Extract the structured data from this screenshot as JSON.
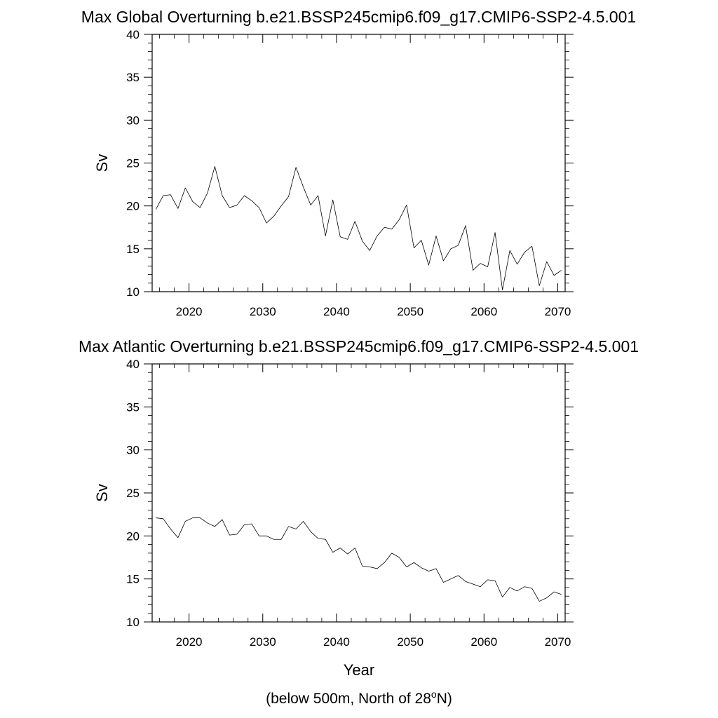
{
  "colors": {
    "background": "#ffffff",
    "line": "#000000",
    "axes": "#000000"
  },
  "figure": {
    "xlabel": "Year",
    "caption": {
      "prefix": "(below 500m, North of 28",
      "superscript": "o",
      "suffix": "N)"
    }
  },
  "chart_data": [
    {
      "type": "line",
      "title": "Max Global Overturning b.e21.BSSP245cmip6.f09_g17.CMIP6-SSP2-4.5.001",
      "xlabel": "",
      "ylabel": "Sv",
      "xlim": [
        2015,
        2071
      ],
      "ylim": [
        10,
        40
      ],
      "xticks": [
        2020,
        2030,
        2040,
        2050,
        2060,
        2070
      ],
      "yticks": [
        10,
        15,
        20,
        25,
        30,
        35,
        40
      ],
      "grid": false,
      "series": [
        {
          "name": "Max Global Overturning",
          "x": [
            2015.5,
            2016.5,
            2017.5,
            2018.5,
            2019.5,
            2020.5,
            2021.5,
            2022.5,
            2023.5,
            2024.5,
            2025.5,
            2026.5,
            2027.5,
            2028.5,
            2029.5,
            2030.5,
            2031.5,
            2032.5,
            2033.5,
            2034.5,
            2035.5,
            2036.5,
            2037.5,
            2038.5,
            2039.5,
            2040.5,
            2041.5,
            2042.5,
            2043.5,
            2044.5,
            2045.5,
            2046.5,
            2047.5,
            2048.5,
            2049.5,
            2050.5,
            2051.5,
            2052.5,
            2053.5,
            2054.5,
            2055.5,
            2056.5,
            2057.5,
            2058.5,
            2059.5,
            2060.5,
            2061.5,
            2062.5,
            2063.5,
            2064.5,
            2065.5,
            2066.5,
            2067.5,
            2068.5,
            2069.5,
            2070.5
          ],
          "values": [
            19.6,
            21.2,
            21.3,
            19.7,
            22.1,
            20.5,
            19.8,
            21.5,
            24.6,
            21.2,
            19.8,
            20.1,
            21.2,
            20.6,
            19.8,
            18.0,
            18.8,
            20.0,
            21.1,
            24.5,
            22.2,
            20.1,
            21.2,
            16.5,
            20.7,
            16.4,
            16.1,
            18.2,
            15.9,
            14.8,
            16.5,
            17.5,
            17.3,
            18.4,
            20.1,
            15.1,
            16.0,
            13.1,
            16.5,
            13.6,
            15.0,
            15.4,
            17.7,
            12.5,
            13.3,
            12.9,
            16.9,
            10.2,
            14.8,
            13.2,
            14.6,
            15.3,
            10.7,
            13.5,
            11.9,
            12.5
          ]
        }
      ]
    },
    {
      "type": "line",
      "title": "Max Atlantic Overturning b.e21.BSSP245cmip6.f09_g17.CMIP6-SSP2-4.5.001",
      "xlabel": "Year",
      "ylabel": "Sv",
      "xlim": [
        2015,
        2071
      ],
      "ylim": [
        10,
        40
      ],
      "xticks": [
        2020,
        2030,
        2040,
        2050,
        2060,
        2070
      ],
      "yticks": [
        10,
        15,
        20,
        25,
        30,
        35,
        40
      ],
      "grid": false,
      "series": [
        {
          "name": "Max Atlantic Overturning",
          "x": [
            2015.5,
            2016.5,
            2017.5,
            2018.5,
            2019.5,
            2020.5,
            2021.5,
            2022.5,
            2023.5,
            2024.5,
            2025.5,
            2026.5,
            2027.5,
            2028.5,
            2029.5,
            2030.5,
            2031.5,
            2032.5,
            2033.5,
            2034.5,
            2035.5,
            2036.5,
            2037.5,
            2038.5,
            2039.5,
            2040.5,
            2041.5,
            2042.5,
            2043.5,
            2044.5,
            2045.5,
            2046.5,
            2047.5,
            2048.5,
            2049.5,
            2050.5,
            2051.5,
            2052.5,
            2053.5,
            2054.5,
            2055.5,
            2056.5,
            2057.5,
            2058.5,
            2059.5,
            2060.5,
            2061.5,
            2062.5,
            2063.5,
            2064.5,
            2065.5,
            2066.5,
            2067.5,
            2068.5,
            2069.5,
            2070.5
          ],
          "values": [
            22.1,
            22.0,
            20.8,
            19.8,
            21.7,
            22.1,
            22.1,
            21.5,
            21.1,
            21.9,
            20.1,
            20.2,
            21.3,
            21.4,
            20.0,
            20.0,
            19.6,
            19.6,
            21.1,
            20.8,
            21.7,
            20.5,
            19.7,
            19.6,
            18.1,
            18.6,
            17.9,
            18.6,
            16.5,
            16.4,
            16.2,
            16.9,
            18.0,
            17.5,
            16.4,
            16.9,
            16.3,
            15.9,
            16.2,
            14.6,
            15.0,
            15.4,
            14.7,
            14.4,
            14.1,
            14.9,
            14.8,
            12.9,
            14.0,
            13.6,
            14.1,
            13.9,
            12.4,
            12.8,
            13.5,
            13.2
          ]
        }
      ]
    }
  ]
}
